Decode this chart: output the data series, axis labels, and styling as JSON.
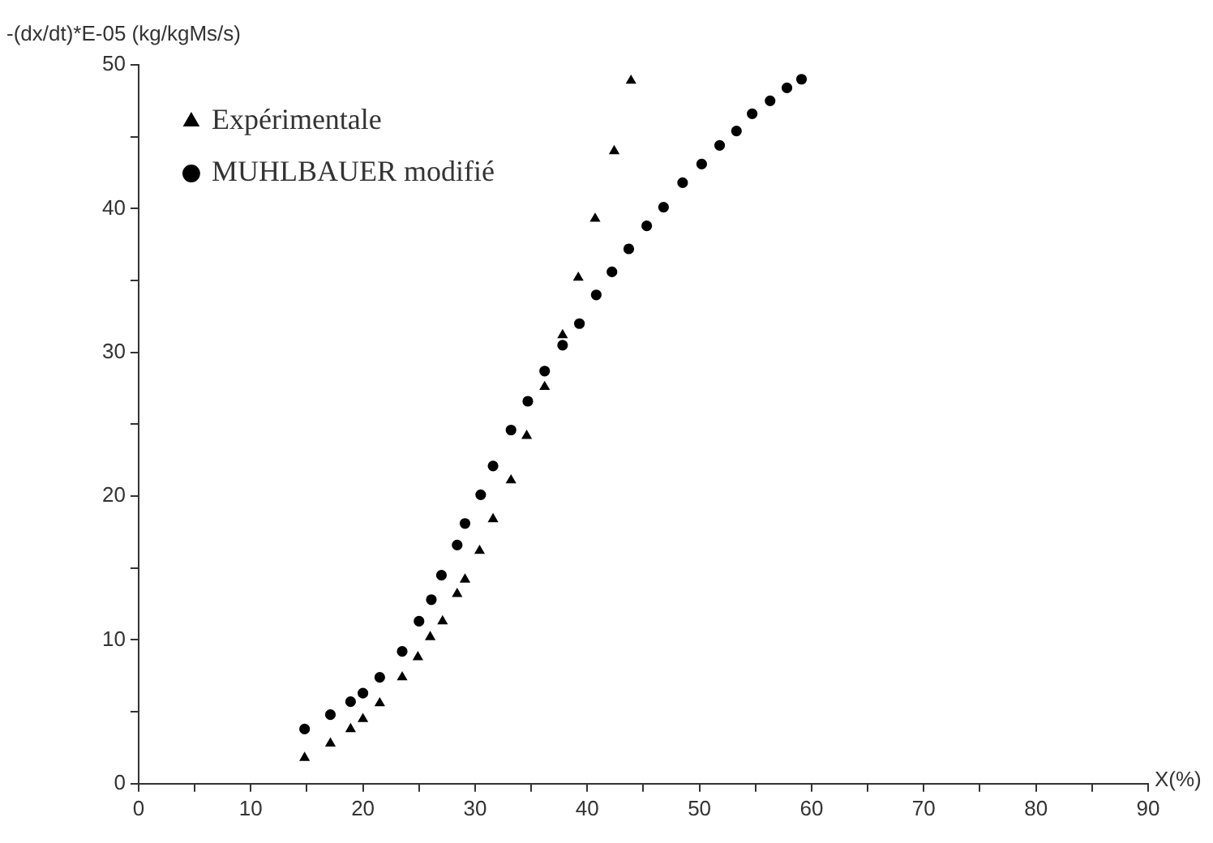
{
  "chart_data": {
    "type": "scatter",
    "xlabel": "X(%)",
    "ylabel": "-(dx/dt)*E-05 (kg/kgMs/s)",
    "xlim": [
      0,
      90
    ],
    "xticks": [
      0,
      {
        "value": 5,
        "label": null
      },
      10,
      {
        "value": 15,
        "label": null
      },
      20,
      {
        "value": 25,
        "label": null
      },
      30,
      {
        "value": 35,
        "label": null
      },
      40,
      {
        "value": 45,
        "label": null
      },
      50,
      {
        "value": 55,
        "label": null
      },
      60,
      {
        "value": 65,
        "label": null
      },
      70,
      {
        "value": 75,
        "label": null
      },
      80,
      {
        "value": 85,
        "label": null
      },
      90
    ],
    "ylim": [
      0,
      50
    ],
    "yticks": [
      0,
      {
        "value": 5,
        "label": null
      },
      10,
      {
        "value": 15,
        "label": null
      },
      20,
      {
        "value": 25,
        "label": null
      },
      30,
      {
        "value": 35,
        "label": null
      },
      40,
      {
        "value": 45,
        "label": null
      },
      50
    ],
    "grid": false,
    "legend": "top left",
    "series": [
      {
        "name": "Expérimentale",
        "color": "#000000",
        "marker": "triangle",
        "x": [
          14.8,
          17.1,
          18.9,
          20.0,
          21.5,
          23.5,
          24.9,
          26.0,
          27.1,
          28.4,
          29.1,
          30.4,
          31.6,
          33.2,
          34.6,
          36.2,
          37.8,
          39.2,
          40.7,
          42.4,
          43.9
        ],
        "values": [
          1.8,
          2.8,
          3.8,
          4.5,
          5.6,
          7.4,
          8.8,
          10.2,
          11.3,
          13.2,
          14.2,
          16.2,
          18.4,
          21.1,
          24.2,
          27.6,
          31.2,
          35.2,
          39.3,
          44.0,
          48.9
        ]
      },
      {
        "name": "MUHLBAUER modifié",
        "color": "#000000",
        "marker": "circle",
        "x": [
          14.8,
          17.1,
          18.9,
          20.0,
          21.5,
          23.5,
          25.0,
          26.1,
          27.0,
          28.4,
          29.1,
          30.5,
          31.6,
          33.2,
          34.7,
          36.2,
          37.8,
          39.3,
          40.8,
          42.2,
          43.7,
          45.3,
          46.8,
          48.5,
          50.2,
          51.8,
          53.3,
          54.7,
          56.3,
          57.8,
          59.1
        ],
        "values": [
          3.8,
          4.8,
          5.7,
          6.3,
          7.4,
          9.2,
          11.3,
          12.8,
          14.5,
          16.6,
          18.1,
          20.1,
          22.1,
          24.6,
          26.6,
          28.7,
          30.5,
          32.0,
          34.0,
          35.6,
          37.2,
          38.8,
          40.1,
          41.8,
          43.1,
          44.4,
          45.4,
          46.6,
          47.5,
          48.4,
          49.0
        ]
      }
    ]
  }
}
